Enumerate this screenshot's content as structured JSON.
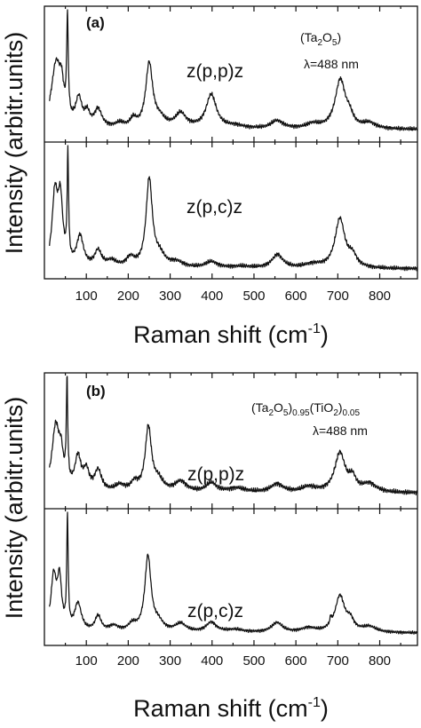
{
  "chart_data": [
    {
      "type": "line",
      "panel_label": "(a)",
      "compound": {
        "text": "(Ta",
        "s1": "2",
        "t1": "O",
        "s2": "5",
        "t2": ")",
        "s3": "",
        "t3": "",
        "s4": "",
        "t4": "",
        "s5": ""
      },
      "wavelength": "λ=488 nm",
      "ylabel": "Intensity (arbitr.units)",
      "xlabel": {
        "main": "Raman shift (cm",
        "sup": "-1",
        "end": ")"
      },
      "xlim": [
        0,
        890
      ],
      "xticks": [
        100,
        200,
        300,
        400,
        500,
        600,
        700,
        800
      ],
      "series": [
        {
          "name": "z(p,p)z",
          "baseline": 0.08,
          "bands": [
            [
              28,
              14,
              0.72
            ],
            [
              41,
              6,
              0.28
            ],
            [
              55,
              2.2,
              1.12
            ],
            [
              82,
              9,
              0.31
            ],
            [
              102,
              7,
              0.14
            ],
            [
              128,
              11,
              0.2
            ],
            [
              180,
              12,
              0.05
            ],
            [
              212,
              9,
              0.09
            ],
            [
              250,
              10,
              0.72
            ],
            [
              275,
              16,
              0.09
            ],
            [
              325,
              16,
              0.16
            ],
            [
              398,
              15,
              0.38
            ],
            [
              455,
              25,
              0.03
            ],
            [
              555,
              18,
              0.09
            ],
            [
              640,
              18,
              0.05
            ],
            [
              706,
              15,
              0.55
            ],
            [
              728,
              10,
              0.1
            ],
            [
              775,
              18,
              0.06
            ]
          ]
        },
        {
          "name": "z(p,c)z",
          "baseline": 0.05,
          "bands": [
            [
              25,
              8,
              0.78
            ],
            [
              38,
              7,
              0.7
            ],
            [
              56,
              2,
              1.17
            ],
            [
              85,
              10,
              0.34
            ],
            [
              128,
              10,
              0.18
            ],
            [
              160,
              14,
              0.07
            ],
            [
              205,
              12,
              0.1
            ],
            [
              250,
              9,
              0.98
            ],
            [
              275,
              15,
              0.12
            ],
            [
              315,
              20,
              0.06
            ],
            [
              398,
              18,
              0.07
            ],
            [
              470,
              30,
              0.02
            ],
            [
              556,
              16,
              0.15
            ],
            [
              640,
              25,
              0.04
            ],
            [
              705,
              14,
              0.55
            ],
            [
              735,
              12,
              0.12
            ]
          ]
        }
      ]
    },
    {
      "type": "line",
      "panel_label": "(b)",
      "compound": {
        "text": "(Ta",
        "s1": "2",
        "t1": "O",
        "s2": "5",
        "t2": ")",
        "s3": "0.95",
        "t3": "(TiO",
        "s4": "2",
        "t4": ")",
        "s5": "0.05"
      },
      "wavelength": "λ=488 nm",
      "ylabel": "Intensity (arbitr.units)",
      "xlabel": {
        "main": "Raman shift (cm",
        "sup": "-1",
        "end": ")"
      },
      "xlim": [
        0,
        890
      ],
      "xticks": [
        100,
        200,
        300,
        400,
        500,
        600,
        700,
        800
      ],
      "series": [
        {
          "name": "z(p,p)z",
          "baseline": 0.1,
          "bands": [
            [
              27,
              11,
              0.63
            ],
            [
              40,
              6,
              0.25
            ],
            [
              54,
              2,
              0.98
            ],
            [
              80,
              9,
              0.32
            ],
            [
              100,
              8,
              0.18
            ],
            [
              128,
              10,
              0.2
            ],
            [
              180,
              14,
              0.06
            ],
            [
              215,
              10,
              0.08
            ],
            [
              248,
              9,
              0.62
            ],
            [
              272,
              14,
              0.1
            ],
            [
              325,
              17,
              0.1
            ],
            [
              398,
              15,
              0.09
            ],
            [
              460,
              25,
              0.04
            ],
            [
              555,
              18,
              0.08
            ],
            [
              630,
              20,
              0.05
            ],
            [
              705,
              15,
              0.38
            ],
            [
              735,
              10,
              0.12
            ],
            [
              775,
              20,
              0.08
            ]
          ]
        },
        {
          "name": "z(p,c)z",
          "baseline": 0.1,
          "bands": [
            [
              22,
              8,
              0.78
            ],
            [
              36,
              6,
              0.7
            ],
            [
              55,
              2,
              1.6
            ],
            [
              80,
              10,
              0.4
            ],
            [
              128,
              9,
              0.22
            ],
            [
              165,
              14,
              0.08
            ],
            [
              210,
              12,
              0.1
            ],
            [
              247,
              9,
              1.08
            ],
            [
              272,
              14,
              0.12
            ],
            [
              325,
              16,
              0.12
            ],
            [
              398,
              15,
              0.14
            ],
            [
              455,
              25,
              0.04
            ],
            [
              555,
              16,
              0.14
            ],
            [
              630,
              20,
              0.06
            ],
            [
              683,
              2,
              0.1
            ],
            [
              705,
              14,
              0.52
            ],
            [
              730,
              10,
              0.14
            ],
            [
              775,
              20,
              0.08
            ]
          ]
        }
      ]
    }
  ]
}
